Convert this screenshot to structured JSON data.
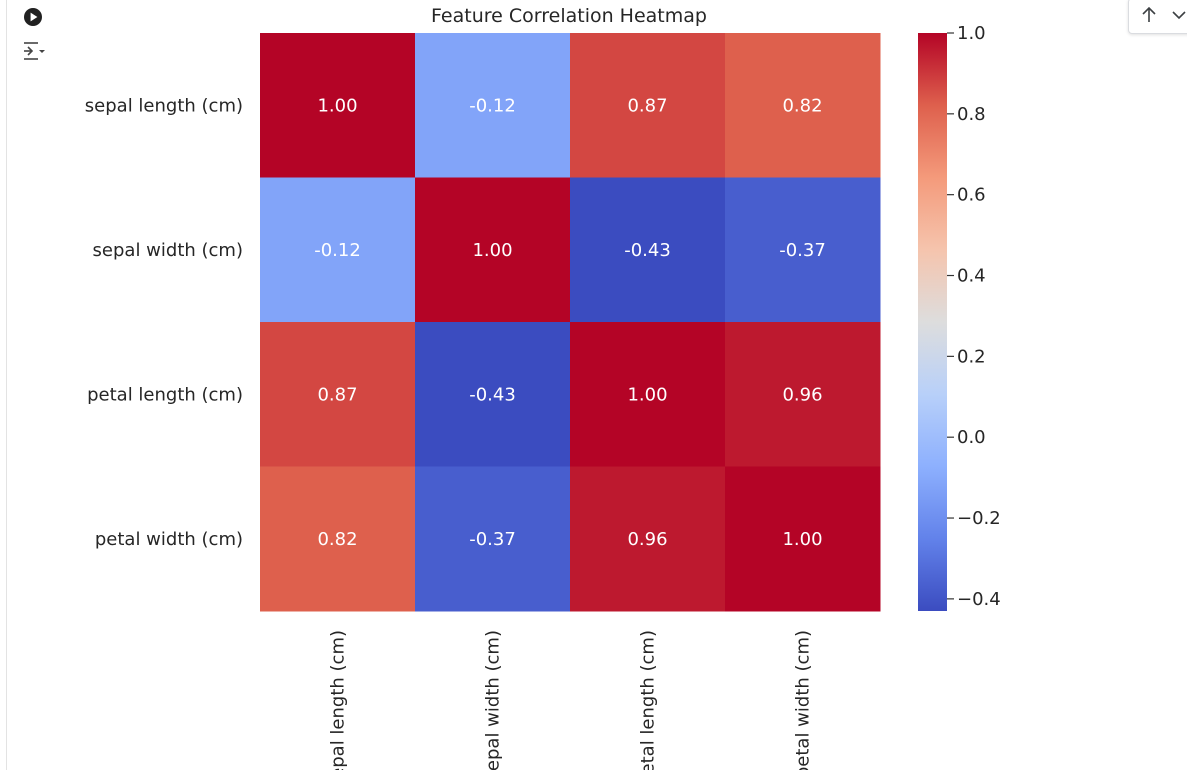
{
  "chart_data": {
    "type": "heatmap",
    "title": "Feature Correlation Heatmap",
    "rows": [
      "sepal length (cm)",
      "sepal width (cm)",
      "petal length (cm)",
      "petal width (cm)"
    ],
    "columns": [
      "sepal length (cm)",
      "sepal width (cm)",
      "petal length (cm)",
      "petal width (cm)"
    ],
    "values": [
      [
        1.0,
        -0.12,
        0.87,
        0.82
      ],
      [
        -0.12,
        1.0,
        -0.43,
        -0.37
      ],
      [
        0.87,
        -0.43,
        1.0,
        0.96
      ],
      [
        0.82,
        -0.37,
        0.96,
        1.0
      ]
    ],
    "annotations": [
      [
        "1.00",
        "-0.12",
        "0.87",
        "0.82"
      ],
      [
        "-0.12",
        "1.00",
        "-0.43",
        "-0.37"
      ],
      [
        "0.87",
        "-0.43",
        "1.00",
        "0.96"
      ],
      [
        "0.82",
        "-0.37",
        "0.96",
        "1.00"
      ]
    ],
    "colormap": "coolwarm",
    "color_range": [
      -0.43,
      1.0
    ],
    "colorbar_ticks": [
      "1.0",
      "0.8",
      "0.6",
      "0.4",
      "0.2",
      "0.0",
      "−0.2",
      "−0.4"
    ],
    "colorbar_tick_values": [
      1.0,
      0.8,
      0.6,
      0.4,
      0.2,
      0.0,
      -0.2,
      -0.4
    ],
    "grid": false,
    "legend": "colorbar-right"
  },
  "toolbar": {
    "run_icon": "play-circle-icon",
    "output_icon": "output-settings-icon",
    "move_up_icon": "arrow-up-icon",
    "more_icon": "chevron-down-icon"
  }
}
